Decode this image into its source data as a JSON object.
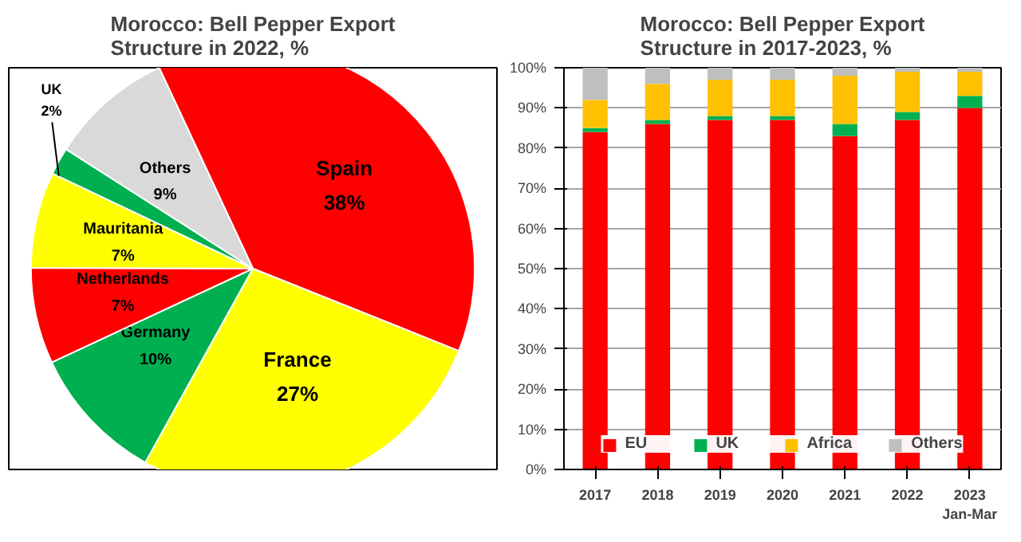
{
  "chart_data": [
    {
      "type": "pie",
      "title": "Morocco: Bell Pepper Export Structure in 2022, %",
      "categories": [
        "Spain",
        "France",
        "Germany",
        "Netherlands",
        "Mauritania",
        "UK",
        "Others"
      ],
      "values": [
        38,
        27,
        10,
        7,
        7,
        2,
        9
      ],
      "colors": [
        "#ff0000",
        "#ffff00",
        "#00b050",
        "#ff0000",
        "#ffff00",
        "#00b050",
        "#d9d9d9"
      ],
      "value_labels": [
        "38%",
        "27%",
        "10%",
        "7%",
        "7%",
        "2%",
        "9%"
      ]
    },
    {
      "type": "bar",
      "stacked": true,
      "title": "Morocco: Bell Pepper Export Structure in 2017-2023, %",
      "categories": [
        "2017",
        "2018",
        "2019",
        "2020",
        "2021",
        "2022",
        "2023\nJan-Mar"
      ],
      "series": [
        {
          "name": "EU",
          "color": "#ff0000",
          "values": [
            84,
            86,
            87,
            87,
            83,
            87,
            90
          ]
        },
        {
          "name": "UK",
          "color": "#00b050",
          "values": [
            1,
            1,
            1,
            1,
            3,
            2,
            3
          ]
        },
        {
          "name": "Africa",
          "color": "#ffc000",
          "values": [
            7,
            9,
            9,
            9,
            12,
            10,
            6
          ]
        },
        {
          "name": "Others",
          "color": "#bfbfbf",
          "values": [
            8,
            4,
            3,
            3,
            2,
            1,
            1
          ]
        }
      ],
      "ylim": [
        0,
        100
      ],
      "yticks": [
        {
          "value": 0,
          "label": "0%"
        },
        {
          "value": 10,
          "label": "10%"
        },
        {
          "value": 20,
          "label": "20%"
        },
        {
          "value": 30,
          "label": "30%"
        },
        {
          "value": 40,
          "label": "40%"
        },
        {
          "value": 50,
          "label": "50%"
        },
        {
          "value": 60,
          "label": "60%"
        },
        {
          "value": 70,
          "label": "70%"
        },
        {
          "value": 80,
          "label": "80%"
        },
        {
          "value": 90,
          "label": "90%"
        },
        {
          "value": 100,
          "label": "100%"
        }
      ],
      "grid": "y",
      "legend": "bottom"
    }
  ]
}
